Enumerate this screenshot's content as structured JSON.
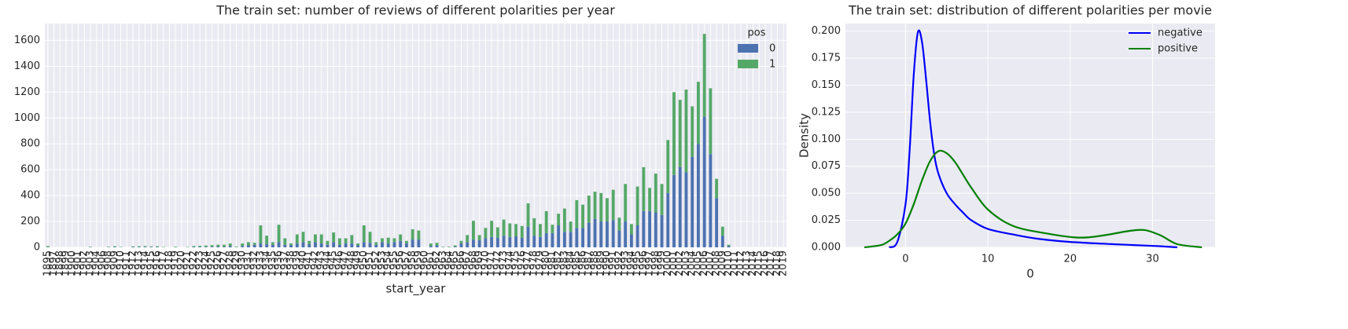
{
  "chart_data": [
    {
      "type": "bar",
      "stacked": true,
      "title": "The train set: number of reviews of different polarities per year",
      "x_label": "start_year",
      "legend_title": "pos",
      "legend": "upper right",
      "grid": true,
      "categories": [
        "1895",
        "1897",
        "1898",
        "1899",
        "1900",
        "1901",
        "1902",
        "1903",
        "1904",
        "1906",
        "1908",
        "1909",
        "1910",
        "1911",
        "1912",
        "1913",
        "1914",
        "1915",
        "1916",
        "1917",
        "1918",
        "1919",
        "1920",
        "1921",
        "1922",
        "1923",
        "1924",
        "1925",
        "1926",
        "1927",
        "1928",
        "1929",
        "1930",
        "1931",
        "1932",
        "1933",
        "1934",
        "1935",
        "1936",
        "1937",
        "1938",
        "1939",
        "1940",
        "1941",
        "1942",
        "1943",
        "1944",
        "1945",
        "1946",
        "1947",
        "1948",
        "1949",
        "1950",
        "1951",
        "1952",
        "1953",
        "1954",
        "1955",
        "1956",
        "1957",
        "1958",
        "1959",
        "1960",
        "1961",
        "1962",
        "1963",
        "1964",
        "1965",
        "1966",
        "1967",
        "1968",
        "1969",
        "1970",
        "1971",
        "1972",
        "1973",
        "1974",
        "1975",
        "1976",
        "1977",
        "1978",
        "1979",
        "1980",
        "1981",
        "1982",
        "1983",
        "1984",
        "1985",
        "1986",
        "1987",
        "1988",
        "1989",
        "1990",
        "1991",
        "1992",
        "1993",
        "1994",
        "1995",
        "1996",
        "1997",
        "1998",
        "1999",
        "2000",
        "2001",
        "2002",
        "2003",
        "2004",
        "2005",
        "2006",
        "2007",
        "2008",
        "2009",
        "2010",
        "2011",
        "2012",
        "2013",
        "2014",
        "2015",
        "2016",
        "2017",
        "2018",
        "2019"
      ],
      "series": [
        {
          "name": "0",
          "color": "#4c72b0",
          "values": [
            2,
            0,
            0,
            0,
            0,
            0,
            0,
            2,
            0,
            0,
            2,
            3,
            0,
            0,
            3,
            3,
            4,
            3,
            3,
            0,
            0,
            0,
            0,
            0,
            3,
            4,
            4,
            5,
            6,
            5,
            10,
            0,
            10,
            15,
            20,
            30,
            25,
            20,
            40,
            20,
            15,
            30,
            40,
            25,
            40,
            30,
            20,
            40,
            20,
            30,
            30,
            15,
            40,
            35,
            20,
            40,
            30,
            40,
            50,
            30,
            60,
            60,
            0,
            10,
            15,
            2,
            2,
            5,
            30,
            40,
            60,
            55,
            70,
            80,
            75,
            90,
            80,
            85,
            75,
            160,
            90,
            80,
            110,
            110,
            170,
            120,
            120,
            150,
            150,
            190,
            220,
            200,
            200,
            210,
            130,
            200,
            100,
            170,
            280,
            280,
            270,
            250,
            420,
            560,
            620,
            580,
            700,
            800,
            1010,
            720,
            380,
            90,
            10,
            0,
            0,
            0,
            0,
            0,
            0,
            0,
            0,
            0
          ]
        },
        {
          "name": "1",
          "color": "#55a868",
          "values": [
            8,
            0,
            0,
            0,
            0,
            0,
            0,
            3,
            0,
            0,
            3,
            5,
            3,
            0,
            4,
            5,
            6,
            4,
            5,
            3,
            0,
            5,
            0,
            3,
            7,
            8,
            10,
            12,
            14,
            15,
            20,
            5,
            20,
            25,
            15,
            140,
            65,
            20,
            135,
            50,
            15,
            70,
            80,
            25,
            60,
            70,
            30,
            75,
            50,
            40,
            65,
            15,
            130,
            85,
            20,
            30,
            45,
            30,
            50,
            20,
            80,
            70,
            0,
            20,
            20,
            3,
            3,
            10,
            20,
            55,
            145,
            40,
            80,
            125,
            80,
            125,
            105,
            95,
            90,
            180,
            135,
            100,
            170,
            65,
            90,
            180,
            80,
            215,
            180,
            210,
            210,
            220,
            180,
            235,
            100,
            290,
            80,
            300,
            340,
            180,
            300,
            240,
            410,
            640,
            520,
            640,
            390,
            480,
            640,
            510,
            150,
            70,
            10,
            0,
            0,
            0,
            0,
            0,
            0,
            0,
            0,
            0
          ]
        }
      ],
      "ylim": [
        0,
        1730
      ],
      "yticks": [
        0,
        200,
        400,
        600,
        800,
        1000,
        1200,
        1400,
        1600
      ]
    },
    {
      "type": "line",
      "title": "The train set: distribution of different polarities per movie",
      "x_label": "0",
      "y_label": "Density",
      "legend": "upper right",
      "grid": true,
      "series": [
        {
          "name": "negative",
          "color": "#0000ff",
          "x": [
            -2,
            -1,
            0,
            0.5,
            1,
            1.5,
            2,
            2.5,
            3,
            3.5,
            4,
            5,
            6,
            7,
            8,
            10,
            13,
            16,
            20,
            25,
            28,
            31,
            33
          ],
          "values": [
            0,
            0.005,
            0.04,
            0.09,
            0.16,
            0.199,
            0.19,
            0.155,
            0.115,
            0.085,
            0.068,
            0.05,
            0.04,
            0.032,
            0.025,
            0.017,
            0.012,
            0.008,
            0.005,
            0.003,
            0.002,
            0.001,
            0
          ]
        },
        {
          "name": "positive",
          "color": "#008000",
          "x": [
            -5,
            -3,
            -2,
            -1,
            0,
            1,
            2,
            3,
            4,
            5,
            6,
            7,
            8,
            10,
            13,
            17,
            21,
            24,
            27,
            29,
            31,
            33,
            36
          ],
          "values": [
            0,
            0.002,
            0.006,
            0.012,
            0.022,
            0.04,
            0.062,
            0.08,
            0.089,
            0.087,
            0.079,
            0.067,
            0.055,
            0.035,
            0.02,
            0.013,
            0.009,
            0.011,
            0.015,
            0.016,
            0.011,
            0.003,
            0
          ]
        }
      ],
      "xlim": [
        -7.3,
        37.6
      ],
      "xticks": [
        0,
        10,
        20,
        30
      ],
      "ylim": [
        0,
        0.207
      ],
      "yticks": [
        {
          "value": 0,
          "label": "0.000"
        },
        {
          "value": 0.025,
          "label": "0.025"
        },
        {
          "value": 0.05,
          "label": "0.050"
        },
        {
          "value": 0.075,
          "label": "0.075"
        },
        {
          "value": 0.1,
          "label": "0.100"
        },
        {
          "value": 0.125,
          "label": "0.125"
        },
        {
          "value": 0.15,
          "label": "0.150"
        },
        {
          "value": 0.175,
          "label": "0.175"
        },
        {
          "value": 0.2,
          "label": "0.200"
        }
      ]
    }
  ]
}
